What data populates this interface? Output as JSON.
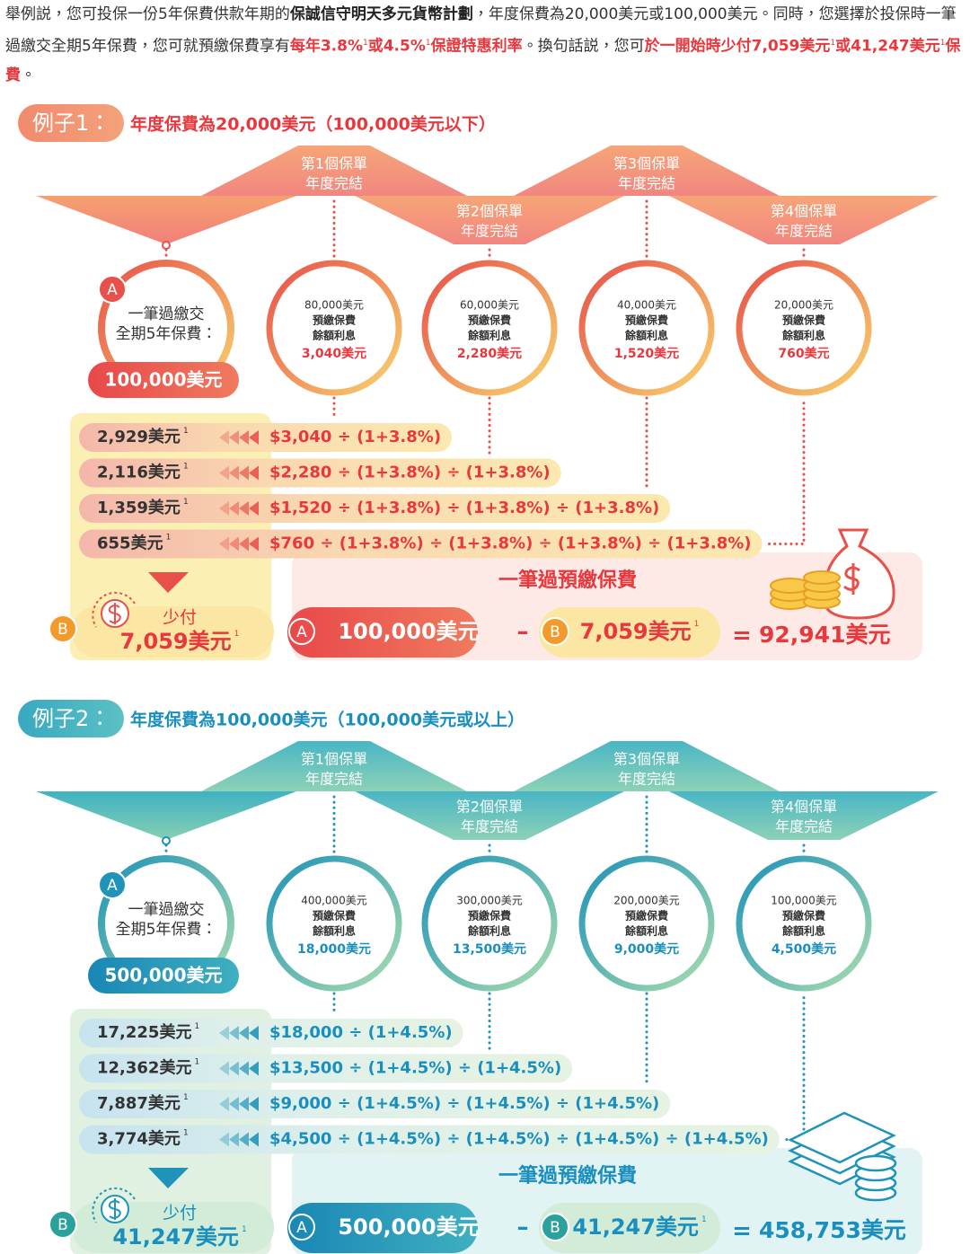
{
  "note_mark": "1",
  "intro": {
    "runs": [
      {
        "text": "舉例説，您可投保一份5年保費供款年期的",
        "style": "normal"
      },
      {
        "text": "保誠信守明天多元貨幣計劃",
        "style": "bold"
      },
      {
        "text": "，年度保費為20,000美元或100,000美元。同時，您選擇於投保時一筆過繳交全期5年保費，您可就預繳保費享有",
        "style": "normal"
      },
      {
        "text": "每年3.8%",
        "style": "red"
      },
      {
        "text": "1",
        "style": "sup"
      },
      {
        "text": "或4.5%",
        "style": "red"
      },
      {
        "text": "1",
        "style": "sup"
      },
      {
        "text": "保證特惠利率",
        "style": "red"
      },
      {
        "text": "。換句話説，您可",
        "style": "normal"
      },
      {
        "text": "於一開始時少付7,059美元",
        "style": "red"
      },
      {
        "text": "1",
        "style": "sup"
      },
      {
        "text": "或41,247美元",
        "style": "red"
      },
      {
        "text": "1",
        "style": "sup"
      },
      {
        "text": "保費",
        "style": "red"
      },
      {
        "text": "。",
        "style": "normal"
      }
    ]
  },
  "examples": [
    {
      "label": "例子1：",
      "subtitle": "年度保費為20,000美元（100,000美元以下）",
      "year_ends": [
        [
          "第1個保單",
          "年度完結"
        ],
        [
          "第2個保單",
          "年度完結"
        ],
        [
          "第3個保單",
          "年度完結"
        ],
        [
          "第4個保單",
          "年度完結"
        ]
      ],
      "lump_sum": {
        "badge": "A",
        "line1": "一筆過繳交",
        "line2": "全期5年保費：",
        "amount": "100,000美元"
      },
      "circles": [
        {
          "balance": "80,000美元",
          "line2": "預繳保費",
          "line3": "餘額利息",
          "interest": "3,040美元"
        },
        {
          "balance": "60,000美元",
          "line2": "預繳保費",
          "line3": "餘額利息",
          "interest": "2,280美元"
        },
        {
          "balance": "40,000美元",
          "line2": "預繳保費",
          "line3": "餘額利息",
          "interest": "1,520美元"
        },
        {
          "balance": "20,000美元",
          "line2": "預繳保費",
          "line3": "餘額利息",
          "interest": "760美元"
        }
      ],
      "discounts": [
        {
          "amount": "2,929美元",
          "formula": "$3,040 ÷ (1+3.8%)"
        },
        {
          "amount": "2,116美元",
          "formula": "$2,280 ÷ (1+3.8%) ÷ (1+3.8%)"
        },
        {
          "amount": "1,359美元",
          "formula": "$1,520 ÷ (1+3.8%) ÷ (1+3.8%) ÷ (1+3.8%)"
        },
        {
          "amount": "655美元",
          "formula": "$760 ÷ (1+3.8%) ÷ (1+3.8%) ÷ (1+3.8%) ÷ (1+3.8%)"
        }
      ],
      "saving": {
        "badge": "B",
        "label": "少付",
        "amount": "7,059美元"
      },
      "result": {
        "title": "一筆過預繳保費",
        "a_badge": "A",
        "a_amount": "100,000美元",
        "minus": "–",
        "b_badge": "B",
        "b_amount": "7,059美元",
        "equals": "=",
        "total": "92,941美元"
      }
    },
    {
      "label": "例子2：",
      "subtitle": "年度保費為100,000美元（100,000美元或以上）",
      "year_ends": [
        [
          "第1個保單",
          "年度完結"
        ],
        [
          "第2個保單",
          "年度完結"
        ],
        [
          "第3個保單",
          "年度完結"
        ],
        [
          "第4個保單",
          "年度完結"
        ]
      ],
      "lump_sum": {
        "badge": "A",
        "line1": "一筆過繳交",
        "line2": "全期5年保費：",
        "amount": "500,000美元"
      },
      "circles": [
        {
          "balance": "400,000美元",
          "line2": "預繳保費",
          "line3": "餘額利息",
          "interest": "18,000美元"
        },
        {
          "balance": "300,000美元",
          "line2": "預繳保費",
          "line3": "餘額利息",
          "interest": "13,500美元"
        },
        {
          "balance": "200,000美元",
          "line2": "預繳保費",
          "line3": "餘額利息",
          "interest": "9,000美元"
        },
        {
          "balance": "100,000美元",
          "line2": "預繳保費",
          "line3": "餘額利息",
          "interest": "4,500美元"
        }
      ],
      "discounts": [
        {
          "amount": "17,225美元",
          "formula": "$18,000 ÷ (1+4.5%)"
        },
        {
          "amount": "12,362美元",
          "formula": "$13,500 ÷ (1+4.5%) ÷ (1+4.5%)"
        },
        {
          "amount": "7,887美元",
          "formula": "$9,000 ÷ (1+4.5%) ÷ (1+4.5%) ÷ (1+4.5%)"
        },
        {
          "amount": "3,774美元",
          "formula": "$4,500 ÷ (1+4.5%) ÷ (1+4.5%) ÷ (1+4.5%) ÷ (1+4.5%)"
        }
      ],
      "saving": {
        "badge": "B",
        "label": "少付",
        "amount": "41,247美元"
      },
      "result": {
        "title": "一筆過預繳保費",
        "a_badge": "A",
        "a_amount": "500,000美元",
        "minus": "–",
        "b_badge": "B",
        "b_amount": "41,247美元",
        "equals": "=",
        "total": "458,753美元"
      }
    }
  ]
}
